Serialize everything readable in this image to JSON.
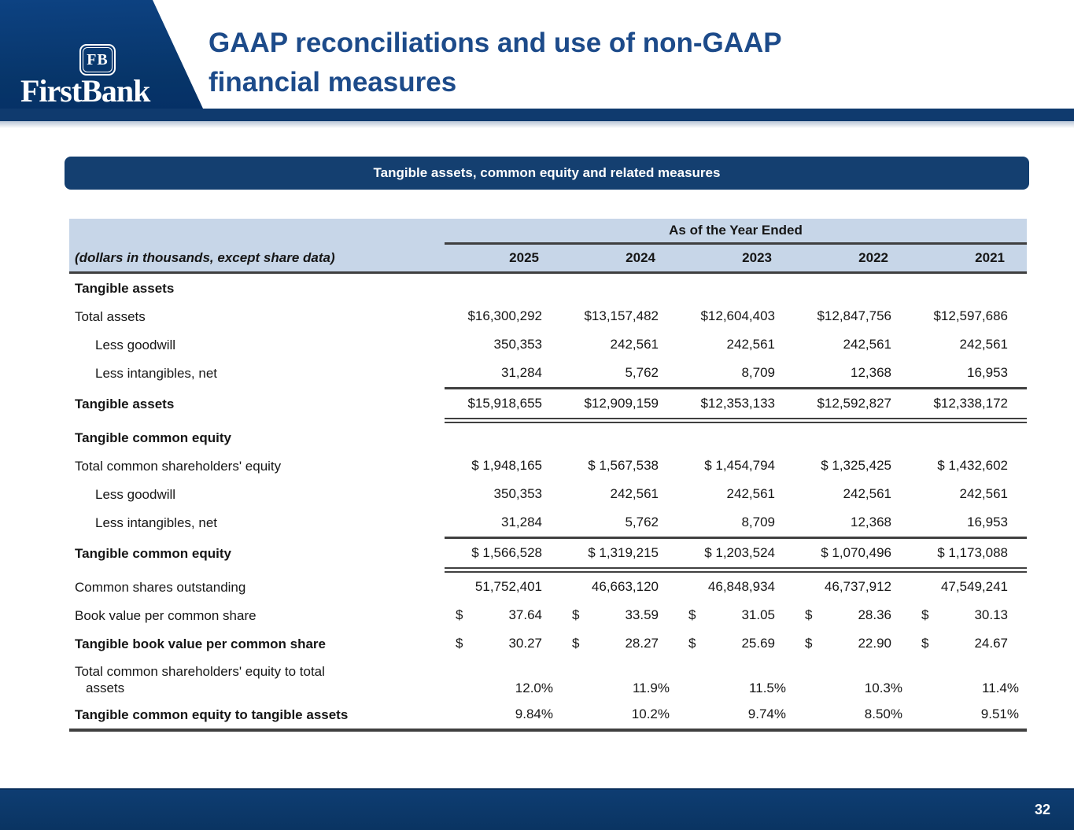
{
  "header": {
    "logo_emblem": "FB",
    "logo_wordmark": "FirstBank",
    "title_line1": "GAAP reconciliations and use of non-GAAP",
    "title_line2": "financial measures"
  },
  "banner": {
    "label": "Tangible assets, common equity and related measures"
  },
  "table": {
    "col_group_header": "As of the Year Ended",
    "row_header_label": "(dollars in thousands, except share data)",
    "years": [
      "2025",
      "2024",
      "2023",
      "2022",
      "2021"
    ],
    "rows": [
      {
        "label": "Tangible assets",
        "bold": true,
        "section": true,
        "values": []
      },
      {
        "label": "Total assets",
        "values": [
          "$16,300,292",
          "$13,157,482",
          "$12,604,403",
          "$12,847,756",
          "$12,597,686"
        ]
      },
      {
        "label": "Less goodwill",
        "indent": 1,
        "values": [
          "350,353",
          "242,561",
          "242,561",
          "242,561",
          "242,561"
        ]
      },
      {
        "label": "Less intangibles, net",
        "indent": 1,
        "values": [
          "31,284",
          "5,762",
          "8,709",
          "12,368",
          "16,953"
        ],
        "rule_below": "single"
      },
      {
        "label": "Tangible assets",
        "bold": true,
        "values": [
          "$15,918,655",
          "$12,909,159",
          "$12,353,133",
          "$12,592,827",
          "$12,338,172"
        ],
        "rule_below": "double"
      },
      {
        "label": "Tangible common equity",
        "bold": true,
        "section": true,
        "values": []
      },
      {
        "label": "Total common shareholders' equity",
        "values": [
          "$ 1,948,165",
          "$ 1,567,538",
          "$ 1,454,794",
          "$ 1,325,425",
          "$ 1,432,602"
        ]
      },
      {
        "label": "Less goodwill",
        "indent": 1,
        "values": [
          "350,353",
          "242,561",
          "242,561",
          "242,561",
          "242,561"
        ]
      },
      {
        "label": "Less intangibles, net",
        "indent": 1,
        "values": [
          "31,284",
          "5,762",
          "8,709",
          "12,368",
          "16,953"
        ],
        "rule_below": "single"
      },
      {
        "label": "Tangible common equity",
        "bold": true,
        "values": [
          "$ 1,566,528",
          "$ 1,319,215",
          "$ 1,203,524",
          "$ 1,070,496",
          "$ 1,173,088"
        ],
        "rule_below": "double"
      },
      {
        "label": "Common shares outstanding",
        "values": [
          "51,752,401",
          "46,663,120",
          "46,848,934",
          "46,737,912",
          "47,549,241"
        ]
      },
      {
        "label": "Book value per common share",
        "dollar_split": true,
        "values": [
          "37.64",
          "33.59",
          "31.05",
          "28.36",
          "30.13"
        ]
      },
      {
        "label": "Tangible book value per common share",
        "bold": true,
        "dollar_split": true,
        "values": [
          "30.27",
          "28.27",
          "25.69",
          "22.90",
          "24.67"
        ]
      },
      {
        "label": "Total common shareholders' equity to total",
        "label2": "assets",
        "two_line": true,
        "values": [
          "12.0%",
          "11.9%",
          "11.5%",
          "10.3%",
          "11.4%"
        ]
      },
      {
        "label": "Tangible common equity to tangible assets",
        "bold": true,
        "values": [
          "9.84%",
          "10.2%",
          "9.74%",
          "8.50%",
          "9.51%"
        ],
        "rule_below": "thick"
      }
    ]
  },
  "footer": {
    "page_number": "32"
  },
  "colors": {
    "header_blue_top": "#0d4282",
    "header_blue_bottom": "#053066",
    "header_bar_blue": "#0f3a6e",
    "title_blue": "#1d4b8a",
    "banner_blue": "#143f70",
    "table_band_blue": "#c7d6e8",
    "rule_gray": "#3f3f3f",
    "footer_blue": "#0a3462",
    "text_color": "#161616"
  }
}
